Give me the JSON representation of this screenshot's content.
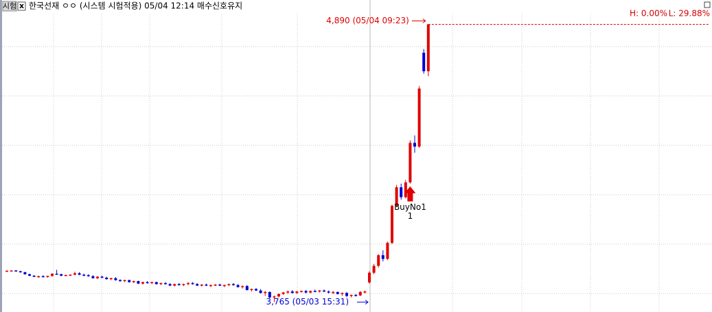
{
  "chart_data": {
    "type": "candlestick",
    "tag": "시험",
    "close_button": "x",
    "title": "한국선재 ㅇㅇ (시스템 시험적용) 05/04 12:14 매수신호유지",
    "high_stat": "H: 0.00%",
    "low_stat": "L: 29.88%",
    "up_color": "#e00000",
    "down_color": "#0000d0",
    "ylim": [
      3725,
      4933
    ],
    "ygrid": [
      3800,
      4000,
      4200,
      4400,
      4600,
      4800
    ],
    "high": {
      "value": 4890,
      "label": "4,890 (05/04 09:23)"
    },
    "low": {
      "value": 3765,
      "label": "3,765 (05/03 15:31)"
    },
    "signal": {
      "name": "BuyNo1",
      "qty": 1,
      "candle": 89
    },
    "ohlc": [
      [
        3892,
        3894,
        3890,
        3892
      ],
      [
        3892,
        3894,
        3890,
        3893
      ],
      [
        3893,
        3895,
        3889,
        3890
      ],
      [
        3890,
        3892,
        3884,
        3886
      ],
      [
        3886,
        3888,
        3876,
        3878
      ],
      [
        3878,
        3880,
        3870,
        3872
      ],
      [
        3872,
        3874,
        3866,
        3868
      ],
      [
        3868,
        3872,
        3864,
        3870
      ],
      [
        3870,
        3874,
        3866,
        3867
      ],
      [
        3867,
        3872,
        3864,
        3871
      ],
      [
        3871,
        3882,
        3868,
        3880
      ],
      [
        3880,
        3896,
        3876,
        3878
      ],
      [
        3878,
        3880,
        3870,
        3872
      ],
      [
        3872,
        3876,
        3870,
        3875
      ],
      [
        3875,
        3878,
        3872,
        3876
      ],
      [
        3876,
        3888,
        3874,
        3882
      ],
      [
        3882,
        3886,
        3874,
        3876
      ],
      [
        3876,
        3880,
        3870,
        3874
      ],
      [
        3874,
        3878,
        3868,
        3870
      ],
      [
        3870,
        3874,
        3860,
        3862
      ],
      [
        3862,
        3870,
        3858,
        3868
      ],
      [
        3868,
        3872,
        3862,
        3864
      ],
      [
        3864,
        3868,
        3856,
        3858
      ],
      [
        3858,
        3864,
        3854,
        3862
      ],
      [
        3862,
        3866,
        3852,
        3854
      ],
      [
        3854,
        3858,
        3848,
        3850
      ],
      [
        3850,
        3856,
        3846,
        3854
      ],
      [
        3854,
        3856,
        3844,
        3846
      ],
      [
        3846,
        3852,
        3842,
        3850
      ],
      [
        3850,
        3852,
        3838,
        3840
      ],
      [
        3840,
        3848,
        3836,
        3846
      ],
      [
        3846,
        3850,
        3840,
        3842
      ],
      [
        3842,
        3848,
        3838,
        3846
      ],
      [
        3846,
        3848,
        3836,
        3838
      ],
      [
        3838,
        3844,
        3834,
        3842
      ],
      [
        3842,
        3846,
        3836,
        3838
      ],
      [
        3838,
        3842,
        3830,
        3832
      ],
      [
        3832,
        3840,
        3828,
        3838
      ],
      [
        3838,
        3842,
        3832,
        3834
      ],
      [
        3834,
        3840,
        3830,
        3838
      ],
      [
        3838,
        3846,
        3834,
        3842
      ],
      [
        3842,
        3846,
        3836,
        3838
      ],
      [
        3838,
        3842,
        3830,
        3832
      ],
      [
        3832,
        3838,
        3828,
        3836
      ],
      [
        3836,
        3840,
        3830,
        3832
      ],
      [
        3832,
        3836,
        3826,
        3834
      ],
      [
        3834,
        3838,
        3830,
        3836
      ],
      [
        3836,
        3840,
        3830,
        3832
      ],
      [
        3832,
        3836,
        3826,
        3834
      ],
      [
        3834,
        3840,
        3830,
        3838
      ],
      [
        3838,
        3842,
        3832,
        3834
      ],
      [
        3834,
        3838,
        3824,
        3826
      ],
      [
        3826,
        3832,
        3820,
        3830
      ],
      [
        3830,
        3834,
        3812,
        3814
      ],
      [
        3814,
        3820,
        3808,
        3818
      ],
      [
        3818,
        3822,
        3810,
        3812
      ],
      [
        3812,
        3818,
        3800,
        3802
      ],
      [
        3802,
        3810,
        3790,
        3806
      ],
      [
        3806,
        3808,
        3780,
        3784
      ],
      [
        3784,
        3792,
        3765,
        3788
      ],
      [
        3788,
        3800,
        3784,
        3798
      ],
      [
        3798,
        3806,
        3794,
        3804
      ],
      [
        3804,
        3812,
        3798,
        3808
      ],
      [
        3808,
        3814,
        3800,
        3802
      ],
      [
        3802,
        3810,
        3798,
        3808
      ],
      [
        3808,
        3812,
        3804,
        3810
      ],
      [
        3810,
        3814,
        3800,
        3804
      ],
      [
        3804,
        3812,
        3800,
        3810
      ],
      [
        3810,
        3816,
        3806,
        3808
      ],
      [
        3808,
        3814,
        3804,
        3812
      ],
      [
        3812,
        3816,
        3806,
        3808
      ],
      [
        3808,
        3812,
        3800,
        3804
      ],
      [
        3804,
        3810,
        3798,
        3806
      ],
      [
        3806,
        3808,
        3796,
        3798
      ],
      [
        3798,
        3804,
        3790,
        3802
      ],
      [
        3802,
        3806,
        3786,
        3790
      ],
      [
        3790,
        3796,
        3784,
        3794
      ],
      [
        3794,
        3798,
        3788,
        3792
      ],
      [
        3792,
        3810,
        3790,
        3806
      ],
      [
        3806,
        3812,
        3800,
        3808
      ],
      [
        3845,
        3890,
        3840,
        3884
      ],
      [
        3884,
        3920,
        3878,
        3912
      ],
      [
        3912,
        3960,
        3905,
        3955
      ],
      [
        3955,
        3975,
        3930,
        3940
      ],
      [
        3940,
        4010,
        3935,
        4005
      ],
      [
        4005,
        4160,
        4000,
        4155
      ],
      [
        4155,
        4240,
        4150,
        4230
      ],
      [
        4230,
        4245,
        4180,
        4190
      ],
      [
        4190,
        4260,
        4185,
        4250
      ],
      [
        4250,
        4420,
        4245,
        4410
      ],
      [
        4410,
        4440,
        4370,
        4395
      ],
      [
        4395,
        4640,
        4390,
        4630
      ],
      [
        4775,
        4790,
        4690,
        4700
      ],
      [
        4700,
        4890,
        4680,
        4890
      ]
    ]
  }
}
